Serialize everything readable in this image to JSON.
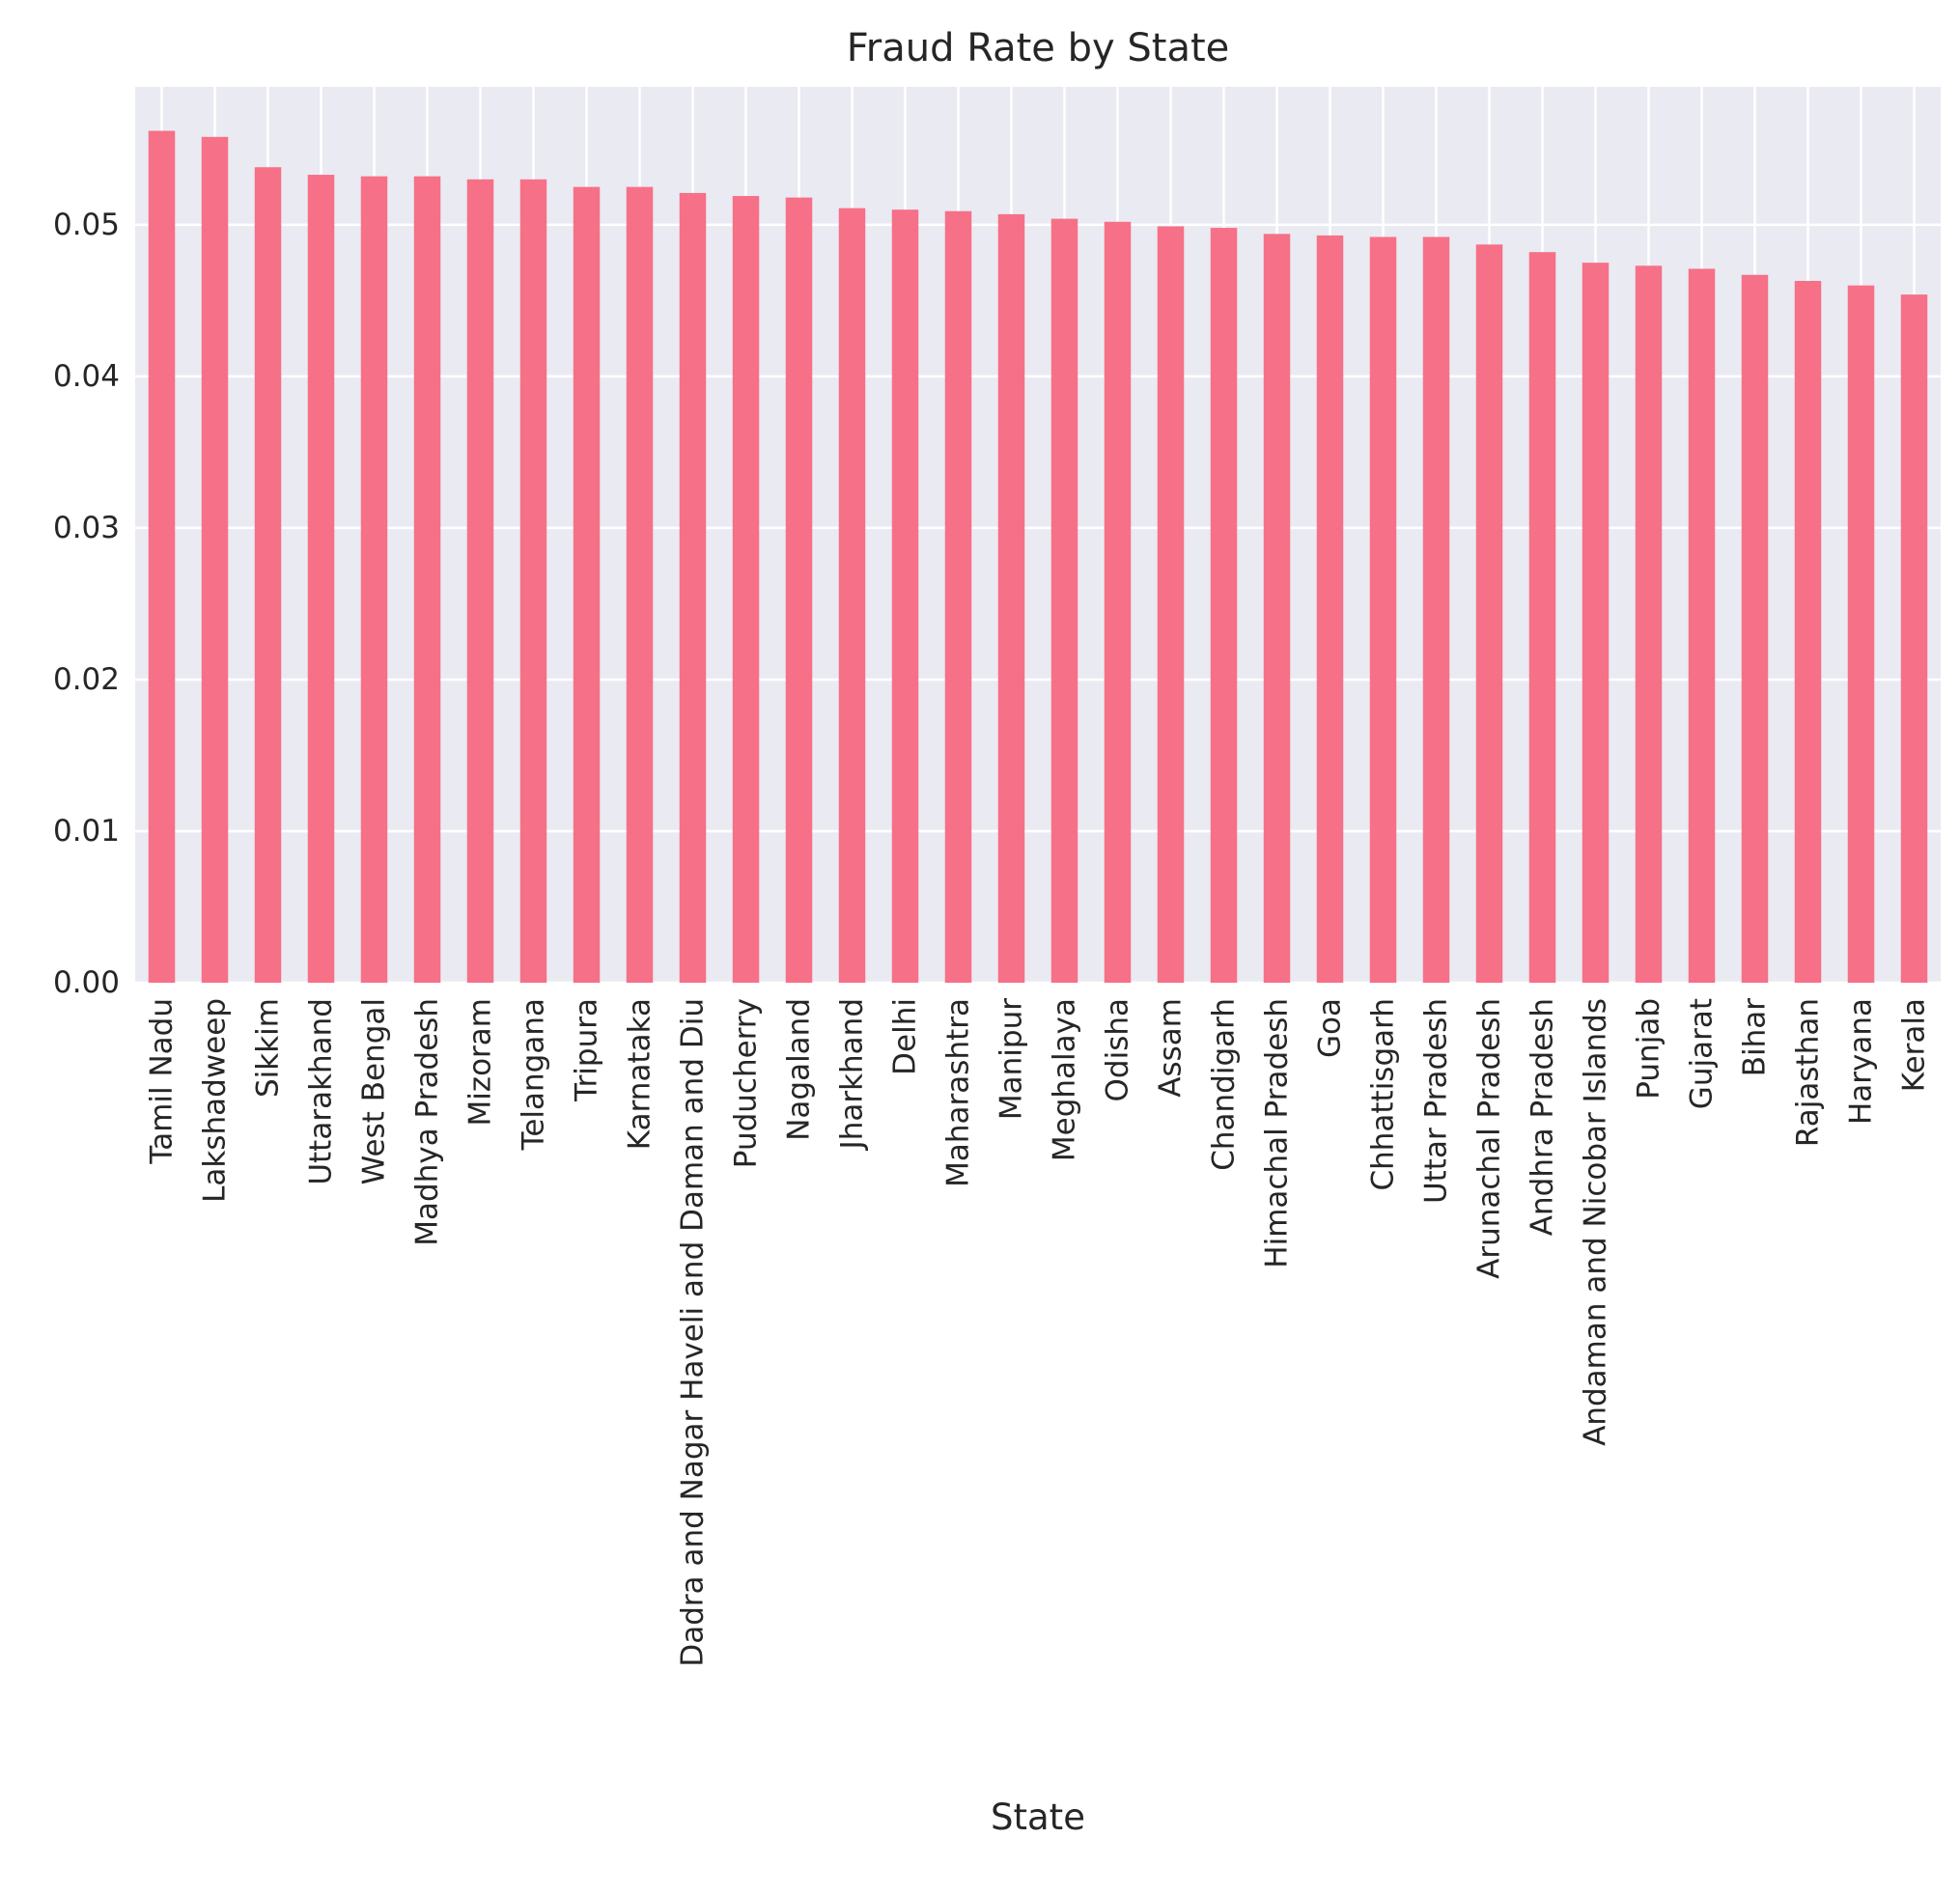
{
  "chart_data": {
    "type": "bar",
    "title": "Fraud Rate by State",
    "xlabel": "State",
    "ylabel": "",
    "ylim": [
      0,
      0.0591
    ],
    "yticks": [
      "0.00",
      "0.01",
      "0.02",
      "0.03",
      "0.04",
      "0.05"
    ],
    "grid": true,
    "legend": "none",
    "colors": {
      "bar": "#f67088",
      "plot_background": "#eaeaf2",
      "grid": "#ffffff",
      "text": "#262626"
    },
    "categories": [
      "Tamil Nadu",
      "Lakshadweep",
      "Sikkim",
      "Uttarakhand",
      "West Bengal",
      "Madhya Pradesh",
      "Mizoram",
      "Telangana",
      "Tripura",
      "Karnataka",
      "Dadra and Nagar Haveli and Daman and Diu",
      "Puducherry",
      "Nagaland",
      "Jharkhand",
      "Delhi",
      "Maharashtra",
      "Manipur",
      "Meghalaya",
      "Odisha",
      "Assam",
      "Chandigarh",
      "Himachal Pradesh",
      "Goa",
      "Chhattisgarh",
      "Uttar Pradesh",
      "Arunachal Pradesh",
      "Andhra Pradesh",
      "Andaman and Nicobar Islands",
      "Punjab",
      "Gujarat",
      "Bihar",
      "Rajasthan",
      "Haryana",
      "Kerala"
    ],
    "values": [
      0.0562,
      0.0558,
      0.0538,
      0.0533,
      0.0532,
      0.0532,
      0.053,
      0.053,
      0.0525,
      0.0525,
      0.0521,
      0.0519,
      0.0518,
      0.0511,
      0.051,
      0.0509,
      0.0507,
      0.0504,
      0.0502,
      0.0499,
      0.0498,
      0.0494,
      0.0493,
      0.0492,
      0.0492,
      0.0487,
      0.0482,
      0.0475,
      0.0473,
      0.0471,
      0.0467,
      0.0463,
      0.046,
      0.0454
    ]
  }
}
